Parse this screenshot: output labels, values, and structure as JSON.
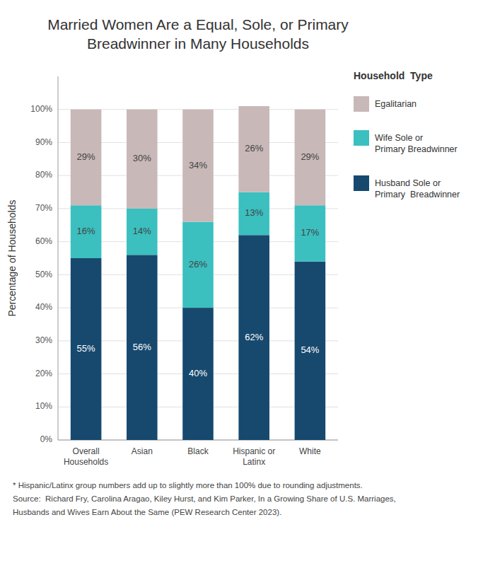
{
  "chart_data": {
    "type": "bar",
    "stacked": true,
    "title": "Married Women Are a Equal, Sole, or Primary\nBreadwinner in Many Households",
    "y_label": "Percentage of Households",
    "categories": [
      "Overall\nHouseholds",
      "Asian",
      "Black",
      "Hispanic or\nLatinx",
      "White"
    ],
    "series": [
      {
        "name": "Husband Sole or\nPrimary  Breadwinner",
        "color": "#17496e",
        "values": [
          55,
          56,
          40,
          62,
          54
        ],
        "value_labels": [
          "55%",
          "56%",
          "40%",
          "62%",
          "54%"
        ]
      },
      {
        "name": "Wife Sole or\nPrimary Breadwinner",
        "color": "#3bbfbf",
        "values": [
          16,
          14,
          26,
          13,
          17
        ],
        "value_labels": [
          "16%",
          "14%",
          "26%",
          "13%",
          "17%"
        ]
      },
      {
        "name": "Egalitarian",
        "color": "#c8b8b8",
        "values": [
          29,
          30,
          34,
          26,
          29
        ],
        "value_labels": [
          "29%",
          "30%",
          "34%",
          "26%",
          "29%"
        ]
      }
    ],
    "legend_title": "Household  Type",
    "legend": "right",
    "ylim": [
      0,
      110
    ],
    "yticks": [
      {
        "value": 0,
        "label": "0%"
      },
      {
        "value": 10,
        "label": "10%"
      },
      {
        "value": 20,
        "label": "20%"
      },
      {
        "value": 30,
        "label": "30%"
      },
      {
        "value": 40,
        "label": "40%"
      },
      {
        "value": 50,
        "label": "50%"
      },
      {
        "value": 60,
        "label": "60%"
      },
      {
        "value": 70,
        "label": "70%"
      },
      {
        "value": 80,
        "label": "80%"
      },
      {
        "value": 90,
        "label": "90%"
      },
      {
        "value": 100,
        "label": "100%"
      }
    ],
    "grid": true,
    "data_labels": true,
    "annotations": [
      "* Hispanic/Latinx group numbers add up to slightly more than 100% due to rounding adjustments.",
      "Source:  Richard Fry, Carolina Aragao, Kiley Hurst, and Kim Parker, In a Growing Share of U.S. Marriages,",
      "Husbands and Wives Earn About the Same (PEW Research Center 2023)."
    ]
  }
}
